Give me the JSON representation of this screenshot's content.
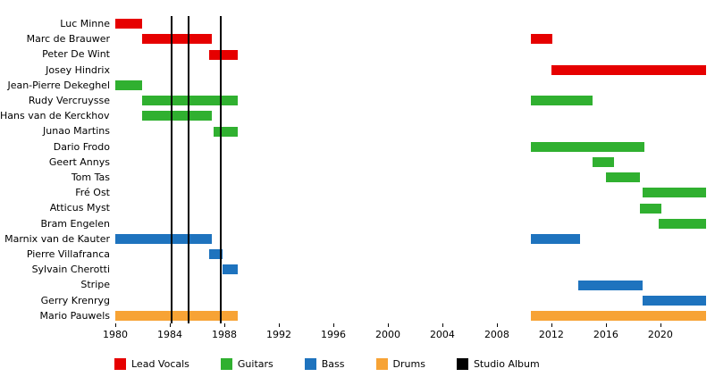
{
  "chart_data": {
    "type": "timeline",
    "x_axis": {
      "min": 1980,
      "max": 2023.35,
      "ticks": [
        1980,
        1984,
        1988,
        1992,
        1996,
        2000,
        2004,
        2008,
        2012,
        2016,
        2020
      ]
    },
    "legend": [
      {
        "label": "Lead Vocals",
        "color": "#e60000"
      },
      {
        "label": "Guitars",
        "color": "#30b030"
      },
      {
        "label": "Bass",
        "color": "#1e73be"
      },
      {
        "label": "Drums",
        "color": "#f7a335"
      },
      {
        "label": "Studio Album",
        "color": "#000000"
      }
    ],
    "album_release_lines": [
      1984.15,
      1985.35,
      1987.75
    ],
    "members": [
      {
        "name": "Luc Minne",
        "bars": [
          {
            "role": "Lead Vocals",
            "start": 1980,
            "end": 1982
          }
        ]
      },
      {
        "name": "Marc de Brauwer",
        "bars": [
          {
            "role": "Lead Vocals",
            "start": 1982,
            "end": 1987.1
          },
          {
            "role": "Lead Vocals",
            "start": 2010.5,
            "end": 2012.05
          }
        ]
      },
      {
        "name": "Peter De Wint",
        "bars": [
          {
            "role": "Lead Vocals",
            "start": 1986.9,
            "end": 1989
          }
        ]
      },
      {
        "name": "Josey Hindrix",
        "bars": [
          {
            "role": "Lead Vocals",
            "start": 2012,
            "end": 2023.35
          }
        ]
      },
      {
        "name": "Jean-Pierre Dekeghel",
        "bars": [
          {
            "role": "Guitars",
            "start": 1980,
            "end": 1982
          }
        ]
      },
      {
        "name": "Rudy Vercruysse",
        "bars": [
          {
            "role": "Guitars",
            "start": 1982,
            "end": 1989
          },
          {
            "role": "Guitars",
            "start": 2010.5,
            "end": 2015
          }
        ]
      },
      {
        "name": "Hans van de Kerckhove",
        "bars": [
          {
            "role": "Guitars",
            "start": 1982,
            "end": 1987.1
          }
        ]
      },
      {
        "name": "Junao Martins",
        "bars": [
          {
            "role": "Guitars",
            "start": 1987.2,
            "end": 1989
          }
        ]
      },
      {
        "name": "Dario Frodo",
        "bars": [
          {
            "role": "Guitars",
            "start": 2010.5,
            "end": 2018.8
          }
        ]
      },
      {
        "name": "Geert Annys",
        "bars": [
          {
            "role": "Guitars",
            "start": 2015,
            "end": 2016.6
          }
        ]
      },
      {
        "name": "Tom Tas",
        "bars": [
          {
            "role": "Guitars",
            "start": 2016,
            "end": 2018.5
          }
        ]
      },
      {
        "name": "Fré Ost",
        "bars": [
          {
            "role": "Guitars",
            "start": 2018.7,
            "end": 2023.35
          }
        ]
      },
      {
        "name": "Atticus Myst",
        "bars": [
          {
            "role": "Guitars",
            "start": 2018.5,
            "end": 2020.05
          }
        ]
      },
      {
        "name": "Bram Engelen",
        "bars": [
          {
            "role": "Guitars",
            "start": 2019.9,
            "end": 2023.35
          }
        ]
      },
      {
        "name": "Marnix van de Kauter",
        "bars": [
          {
            "role": "Bass",
            "start": 1980,
            "end": 1987.1
          },
          {
            "role": "Bass",
            "start": 2010.5,
            "end": 2014.1
          }
        ]
      },
      {
        "name": "Pierre Villafranca",
        "bars": [
          {
            "role": "Bass",
            "start": 1986.9,
            "end": 1987.9
          }
        ]
      },
      {
        "name": "Sylvain Cherotti",
        "bars": [
          {
            "role": "Bass",
            "start": 1987.9,
            "end": 1989
          }
        ]
      },
      {
        "name": "Stripe",
        "bars": [
          {
            "role": "Bass",
            "start": 2014,
            "end": 2018.7
          }
        ]
      },
      {
        "name": "Gerry Krenryg",
        "bars": [
          {
            "role": "Bass",
            "start": 2018.7,
            "end": 2023.35
          }
        ]
      },
      {
        "name": "Mario Pauwels",
        "bars": [
          {
            "role": "Drums",
            "start": 1980,
            "end": 1989
          },
          {
            "role": "Drums",
            "start": 2010.5,
            "end": 2023.35
          }
        ]
      }
    ]
  }
}
